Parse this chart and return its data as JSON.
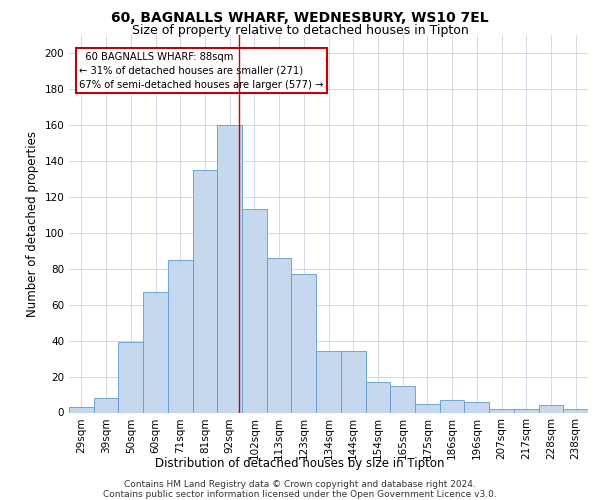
{
  "title1": "60, BAGNALLS WHARF, WEDNESBURY, WS10 7EL",
  "title2": "Size of property relative to detached houses in Tipton",
  "xlabel": "Distribution of detached houses by size in Tipton",
  "ylabel": "Number of detached properties",
  "footnote": "Contains HM Land Registry data © Crown copyright and database right 2024.\nContains public sector information licensed under the Open Government Licence v3.0.",
  "bar_labels": [
    "29sqm",
    "39sqm",
    "50sqm",
    "60sqm",
    "71sqm",
    "81sqm",
    "92sqm",
    "102sqm",
    "113sqm",
    "123sqm",
    "134sqm",
    "144sqm",
    "154sqm",
    "165sqm",
    "175sqm",
    "186sqm",
    "196sqm",
    "207sqm",
    "217sqm",
    "228sqm",
    "238sqm"
  ],
  "bar_values": [
    3,
    8,
    39,
    67,
    85,
    135,
    160,
    113,
    86,
    77,
    34,
    34,
    17,
    15,
    5,
    7,
    6,
    2,
    2,
    4,
    2
  ],
  "bar_color": "#c5d8ed",
  "bar_edge_color": "#5b9bd5",
  "ylim": [
    0,
    210
  ],
  "yticks": [
    0,
    20,
    40,
    60,
    80,
    100,
    120,
    140,
    160,
    180,
    200
  ],
  "redline_x": 6.36,
  "annotation_text": "  60 BAGNALLS WHARF: 88sqm\n← 31% of detached houses are smaller (271)\n67% of semi-detached houses are larger (577) →",
  "annotation_box_color": "#ffffff",
  "annotation_box_edge": "#cc0000",
  "redline_color": "#cc0000",
  "background_color": "#ffffff",
  "grid_color": "#c8d4e3",
  "title1_fontsize": 10,
  "title2_fontsize": 9,
  "axis_label_fontsize": 8.5,
  "tick_fontsize": 7.5,
  "footnote_fontsize": 6.5
}
